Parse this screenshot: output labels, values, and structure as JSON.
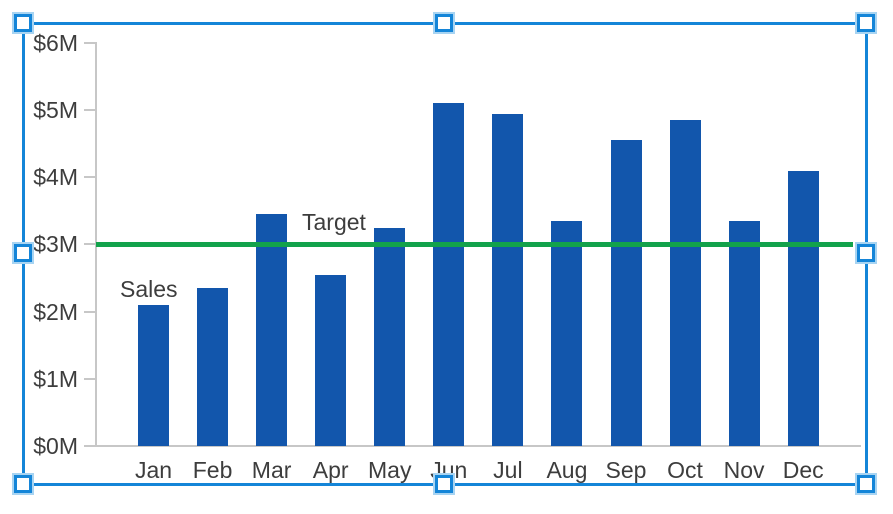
{
  "chart_data": {
    "type": "bar",
    "title": "",
    "xlabel": "",
    "ylabel": "",
    "categories": [
      "Jan",
      "Feb",
      "Mar",
      "Apr",
      "May",
      "Jun",
      "Jul",
      "Aug",
      "Sep",
      "Oct",
      "Nov",
      "Dec"
    ],
    "series": [
      {
        "name": "Sales",
        "values": [
          2.1,
          2.35,
          3.45,
          2.55,
          3.25,
          5.1,
          4.95,
          3.35,
          4.55,
          4.85,
          3.35,
          4.1
        ]
      }
    ],
    "yticks": [
      0,
      1,
      2,
      3,
      4,
      5,
      6
    ],
    "ytick_labels": [
      "$0M",
      "$1M",
      "$2M",
      "$3M",
      "$4M",
      "$5M",
      "$6M"
    ],
    "ylim": [
      0,
      6
    ],
    "grid": false,
    "legend_position": "none",
    "target_line": {
      "label": "Target",
      "value": 3
    }
  },
  "labels": {
    "sales_annotation": "Sales",
    "target_annotation": "Target"
  },
  "colors": {
    "bar": "#1256ac",
    "target_line": "#12a24b",
    "axis": "#c7c7c7",
    "text": "#3d3d3d",
    "selection": "#1485d8",
    "handle_fill": "#ffffff",
    "handle_glow": "#a8d4f2"
  },
  "selection": {
    "state": "selected",
    "handle_names": [
      "top-left",
      "top-center",
      "top-right",
      "middle-left",
      "middle-right",
      "bottom-left",
      "bottom-center",
      "bottom-right"
    ]
  }
}
